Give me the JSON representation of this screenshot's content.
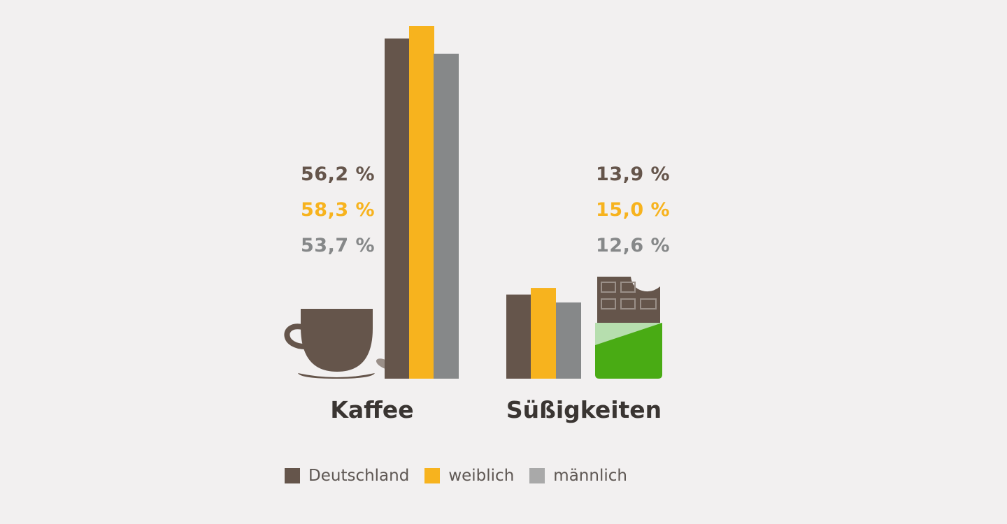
{
  "chart_data": {
    "type": "bar",
    "categories": [
      "Kaffee",
      "Süßigkeiten"
    ],
    "series": [
      {
        "name": "Deutschland",
        "color": "#65554b",
        "values": [
          56.2,
          13.9
        ],
        "labels": [
          "56,2 %",
          "13,9 %"
        ]
      },
      {
        "name": "weiblich",
        "color": "#f7b31e",
        "values": [
          58.3,
          15.0
        ],
        "labels": [
          "58,3 %",
          "15,0 %"
        ]
      },
      {
        "name": "männlich",
        "color": "#868889",
        "values": [
          53.7,
          12.6
        ],
        "labels": [
          "53,7 %",
          "12,6 %"
        ]
      }
    ],
    "ylim": [
      0,
      58.3
    ],
    "grid": false,
    "legend": "bottom",
    "icons": [
      "coffee-cup-icon",
      "chocolate-bar-icon"
    ]
  }
}
